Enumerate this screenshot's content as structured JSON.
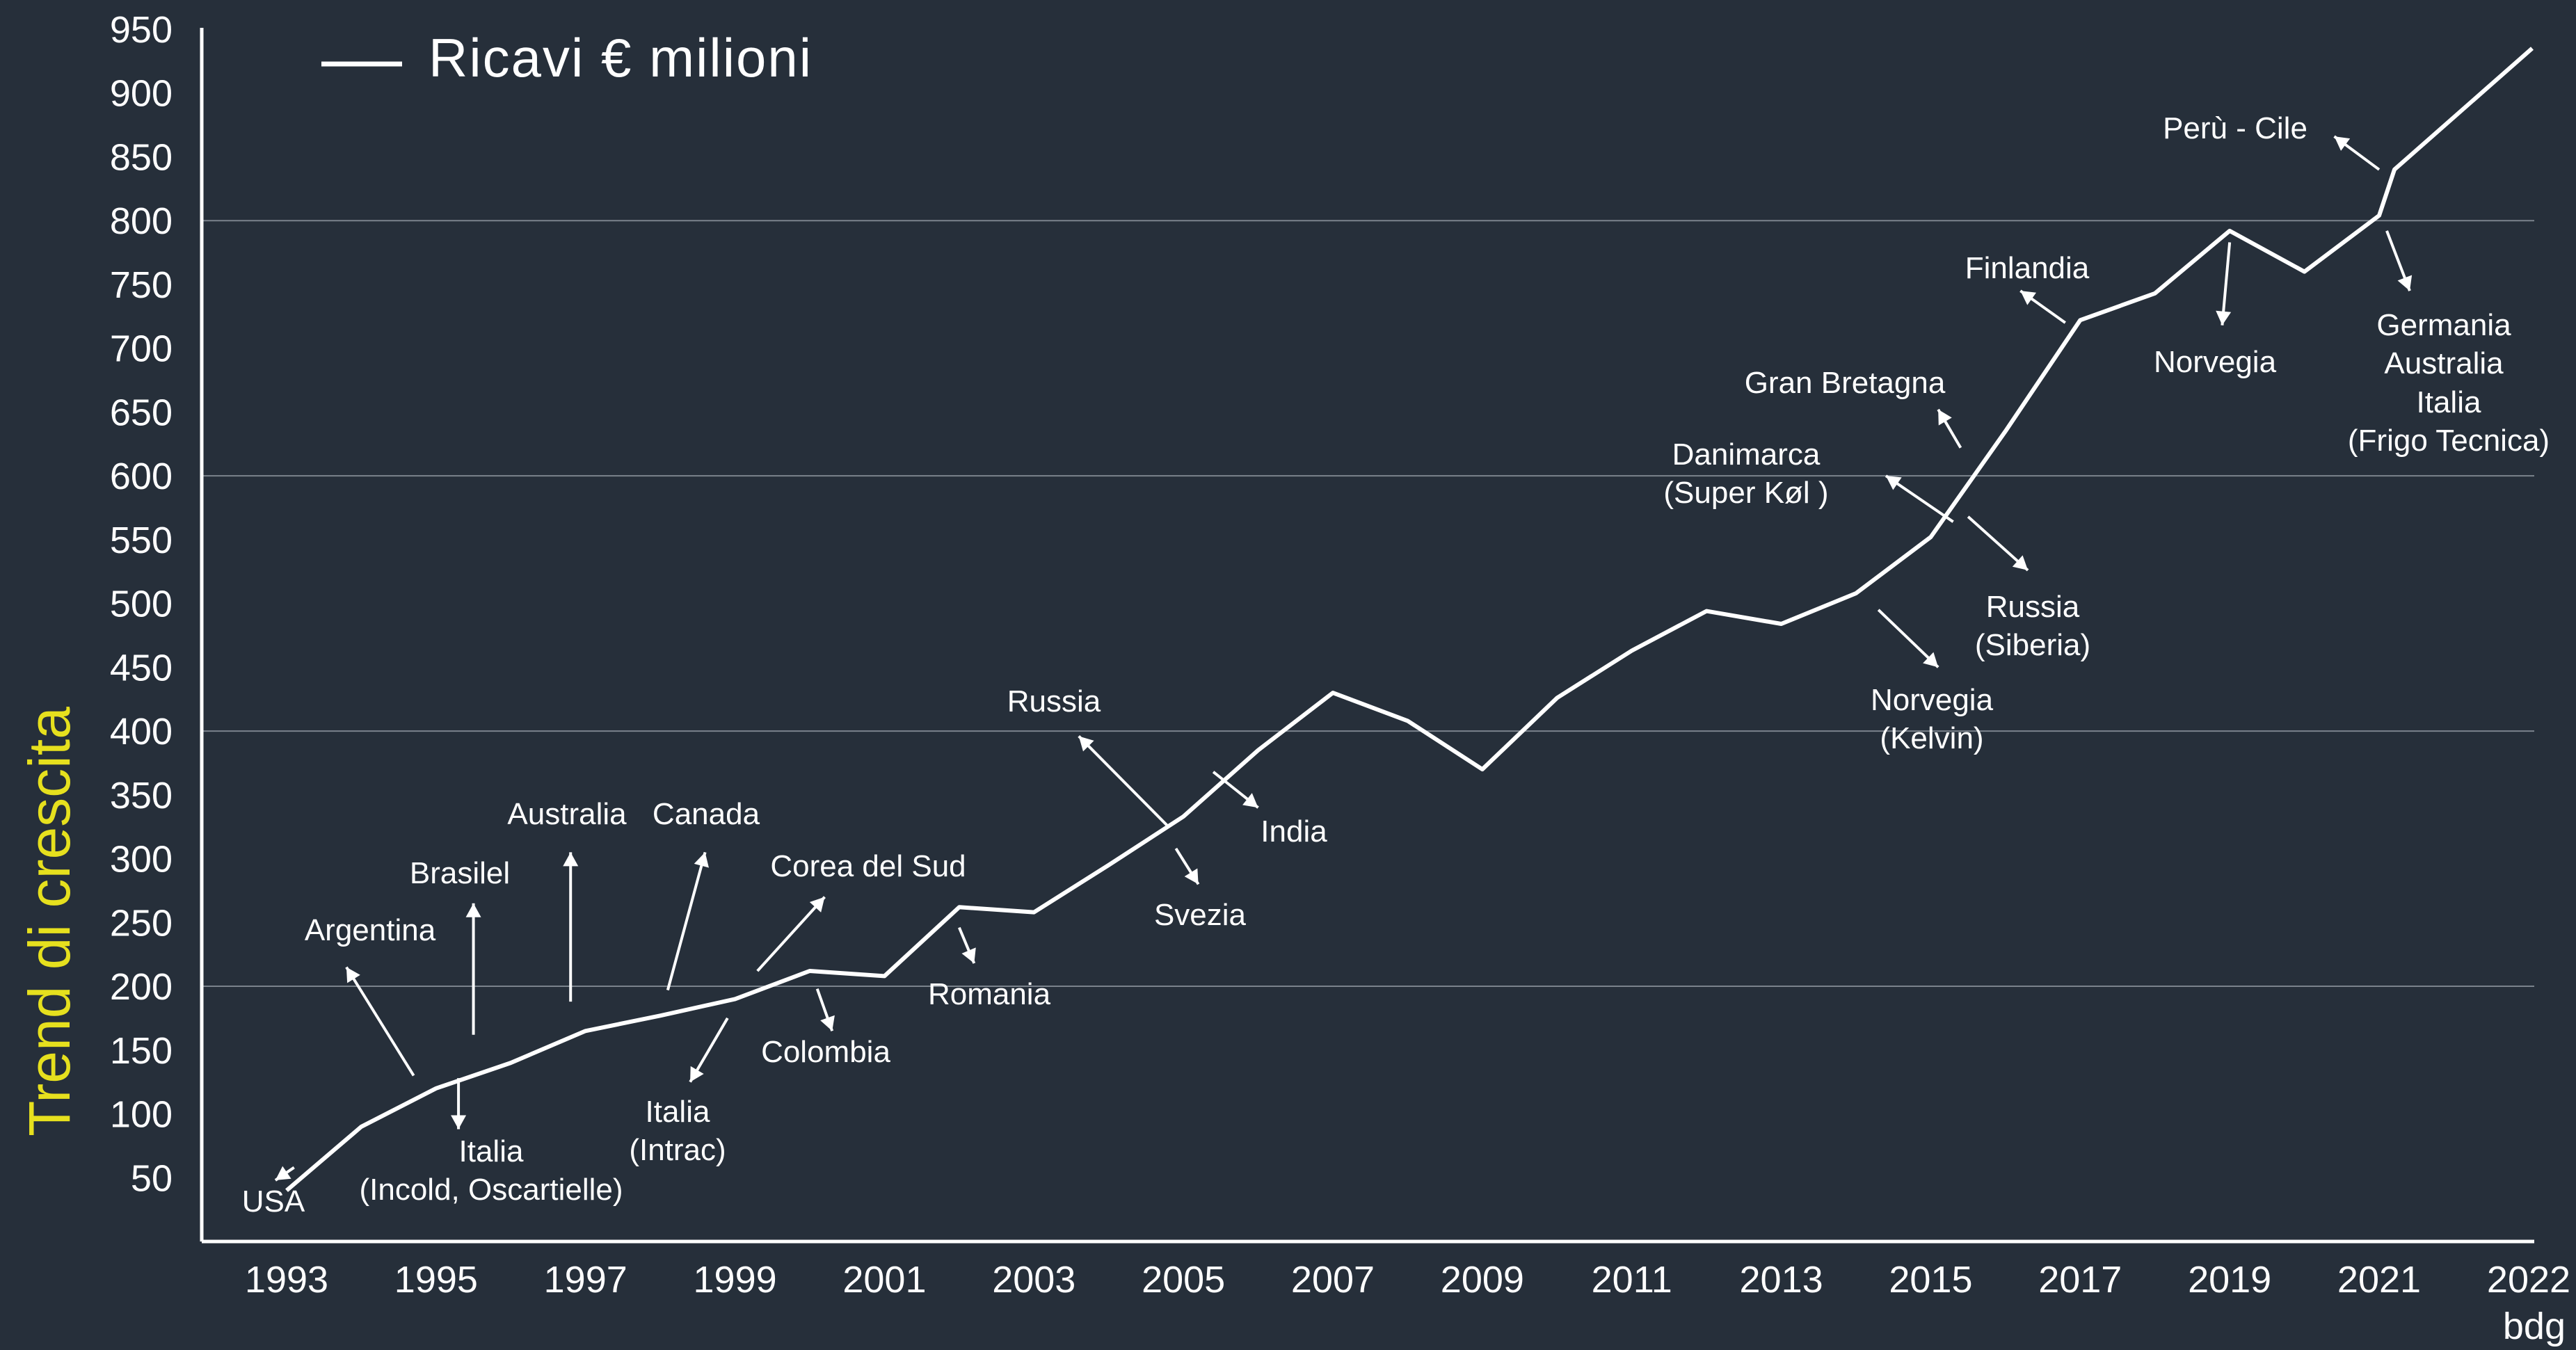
{
  "chart_data": {
    "type": "line",
    "title": "",
    "ylabel": "Trend di crescita",
    "xlabel": "",
    "x_unit_note": "bdg",
    "ylim": [
      0,
      950
    ],
    "xlim": [
      1992,
      2022
    ],
    "y_ticks": [
      50,
      100,
      150,
      200,
      250,
      300,
      350,
      400,
      450,
      500,
      550,
      600,
      650,
      700,
      750,
      800,
      850,
      900,
      950
    ],
    "x_ticks": [
      1993,
      1995,
      1997,
      1999,
      2001,
      2003,
      2005,
      2007,
      2009,
      2011,
      2013,
      2015,
      2017,
      2019,
      2021,
      2022
    ],
    "gridlines_y": [
      200,
      400,
      600,
      800
    ],
    "legend_position": "top-left",
    "series": [
      {
        "name": "Ricavi € milioni",
        "color": "#ffffff",
        "x": [
          1993,
          1994,
          1995,
          1996,
          1997,
          1998,
          1999,
          2000,
          2001,
          2002,
          2003,
          2004,
          2005,
          2006,
          2007,
          2008,
          2009,
          2010,
          2011,
          2012,
          2013,
          2014,
          2015,
          2016,
          2017,
          2018,
          2019,
          2020,
          2021,
          2021.1,
          2022
        ],
        "y": [
          40,
          90,
          120,
          140,
          165,
          177,
          190,
          212,
          208,
          262,
          258,
          295,
          333,
          385,
          430,
          408,
          370,
          426,
          463,
          494,
          484,
          508,
          552,
          635,
          722,
          743,
          792,
          760,
          804,
          840,
          935
        ]
      }
    ],
    "annotations": [
      {
        "text": [
          "USA"
        ],
        "x": 1992.8,
        "y": 25,
        "line": [
          [
            1992.85,
            48
          ],
          [
            1993.1,
            58
          ]
        ]
      },
      {
        "text": [
          "Argentina"
        ],
        "x": 1993.1,
        "y": 385,
        "line": [
          [
            1993.8,
            215
          ],
          [
            1994.7,
            130
          ]
        ],
        "ty": 568
      },
      {
        "text": [
          "Brasilel"
        ],
        "x": 1994.8,
        "y": 0,
        "line": [
          [
            1995.5,
            265
          ],
          [
            1995.5,
            162
          ]
        ],
        "ty": 532
      },
      {
        "text": [
          "Italia",
          "(Incold, Oscartielle)"
        ],
        "line": [
          [
            1995.3,
            88
          ],
          [
            1995.3,
            128
          ]
        ]
      },
      {
        "text": [
          "Australia"
        ],
        "line": [
          [
            1996.8,
            305
          ],
          [
            1996.8,
            188
          ]
        ]
      },
      {
        "text": [
          "Canada"
        ],
        "line": [
          [
            1998.6,
            305
          ],
          [
            1998.1,
            197
          ]
        ]
      },
      {
        "text": [
          "Italia",
          "(Intrac)"
        ],
        "line": [
          [
            1998.4,
            125
          ],
          [
            1998.9,
            175
          ]
        ]
      },
      {
        "text": [
          "Corea del Sud"
        ],
        "line": [
          [
            2000.2,
            270
          ],
          [
            1999.3,
            212
          ]
        ]
      },
      {
        "text": [
          "Colombia"
        ],
        "line": [
          [
            2000.3,
            165
          ],
          [
            2000.1,
            198
          ]
        ]
      },
      {
        "text": [
          "Romania"
        ],
        "line": [
          [
            2002.2,
            218
          ],
          [
            2002.0,
            246
          ]
        ]
      },
      {
        "text": [
          "Russia"
        ],
        "line": [
          [
            2003.6,
            396
          ],
          [
            2004.8,
            325
          ]
        ]
      },
      {
        "text": [
          "Svezia"
        ],
        "line": [
          [
            2005.2,
            280
          ],
          [
            2004.9,
            308
          ]
        ]
      },
      {
        "text": [
          "India"
        ],
        "line": [
          [
            2006.0,
            340
          ],
          [
            2005.4,
            368
          ]
        ]
      },
      {
        "text": [
          "Danimarca",
          "(Super Køl )"
        ],
        "line": [
          [
            2014.4,
            600
          ],
          [
            2015.3,
            564
          ]
        ]
      },
      {
        "text": [
          "Gran Bretagna"
        ],
        "line": [
          [
            2015.1,
            652
          ],
          [
            2015.4,
            622
          ]
        ]
      },
      {
        "text": [
          "Russia",
          "(Siberia)"
        ],
        "line": [
          [
            2016.3,
            526
          ],
          [
            2015.5,
            568
          ]
        ]
      },
      {
        "text": [
          "Norvegia",
          "(Kelvin)"
        ],
        "line": [
          [
            2015.1,
            450
          ],
          [
            2014.3,
            495
          ]
        ]
      },
      {
        "text": [
          "Finlandia"
        ],
        "line": [
          [
            2016.2,
            745
          ],
          [
            2016.8,
            720
          ]
        ]
      },
      {
        "text": [
          "Norvegia"
        ],
        "line": [
          [
            2018.9,
            718
          ],
          [
            2019.0,
            783
          ]
        ]
      },
      {
        "text": [
          "Perù - Cile"
        ],
        "line": [
          [
            2020.4,
            866
          ],
          [
            2021.0,
            840
          ]
        ]
      },
      {
        "text": [
          "Germania",
          "Australia"
        ],
        "line": [
          [
            2021.2,
            745
          ],
          [
            2021.05,
            792
          ]
        ]
      },
      {
        "text": [
          "Italia",
          "(Frigo Tecnica)"
        ],
        "line": null
      }
    ]
  }
}
